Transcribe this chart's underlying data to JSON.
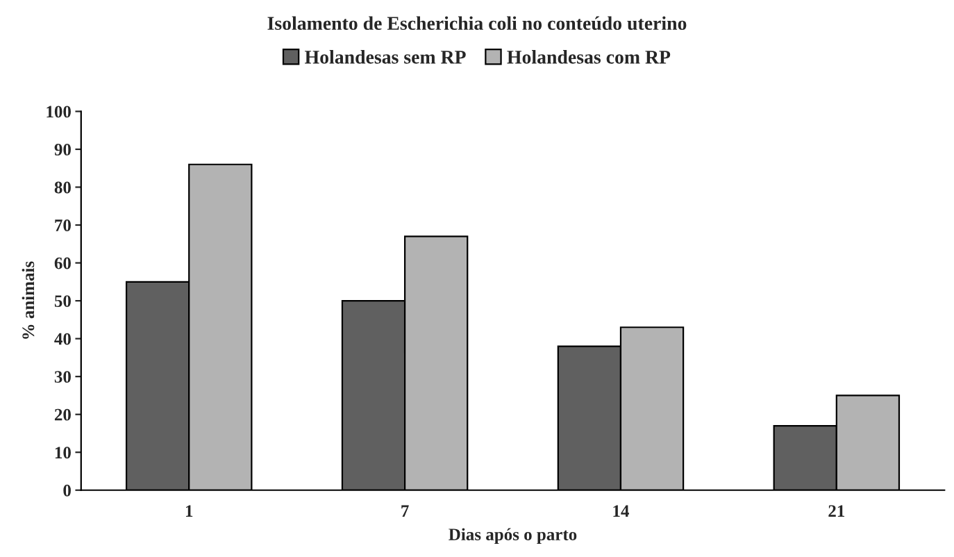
{
  "chart_data": {
    "type": "bar",
    "title": "Isolamento de Escherichia coli no conteúdo uterino",
    "xlabel": "Dias após o parto",
    "ylabel": "% animais",
    "categories": [
      "1",
      "7",
      "14",
      "21"
    ],
    "series": [
      {
        "name": "Holandesas sem RP",
        "color": "#606060",
        "values": [
          55,
          50,
          38,
          17
        ]
      },
      {
        "name": "Holandesas com RP",
        "color": "#b3b3b3",
        "values": [
          86,
          67,
          43,
          25
        ]
      }
    ],
    "ylim": [
      0,
      100
    ],
    "yticks": [
      0,
      10,
      20,
      30,
      40,
      50,
      60,
      70,
      80,
      90,
      100
    ],
    "grid": false,
    "legend": "top"
  }
}
